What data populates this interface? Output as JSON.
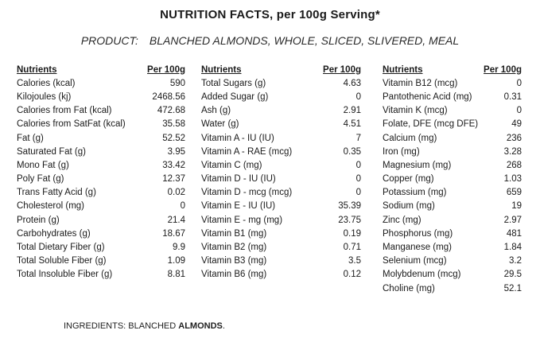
{
  "title": "NUTRITION FACTS, per 100g Serving*",
  "product": {
    "label": "PRODUCT:",
    "value": "BLANCHED ALMONDS, WHOLE, SLICED, SLIVERED, MEAL"
  },
  "columns": [
    {
      "header_name": "Nutrients",
      "header_value": "Per 100g",
      "rows": [
        {
          "name": "Calories (kcal)",
          "value": "590"
        },
        {
          "name": "Kilojoules (kj)",
          "value": "2468.56"
        },
        {
          "name": "Calories from Fat (kcal)",
          "value": "472.68"
        },
        {
          "name": "Calories from SatFat (kcal)",
          "value": "35.58"
        },
        {
          "name": "Fat (g)",
          "value": "52.52"
        },
        {
          "name": "Saturated Fat (g)",
          "value": "3.95"
        },
        {
          "name": "Mono Fat (g)",
          "value": "33.42"
        },
        {
          "name": "Poly Fat (g)",
          "value": "12.37"
        },
        {
          "name": "Trans Fatty Acid (g)",
          "value": "0.02"
        },
        {
          "name": "Cholesterol (mg)",
          "value": "0"
        },
        {
          "name": "Protein (g)",
          "value": "21.4"
        },
        {
          "name": "Carbohydrates (g)",
          "value": "18.67"
        },
        {
          "name": "Total Dietary Fiber (g)",
          "value": "9.9"
        },
        {
          "name": "Total Soluble Fiber (g)",
          "value": "1.09"
        },
        {
          "name": "Total Insoluble Fiber (g)",
          "value": "8.81"
        }
      ]
    },
    {
      "header_name": "Nutrients",
      "header_value": "Per 100g",
      "rows": [
        {
          "name": "Total Sugars (g)",
          "value": "4.63"
        },
        {
          "name": "Added Sugar (g)",
          "value": "0"
        },
        {
          "name": "Ash (g)",
          "value": "2.91"
        },
        {
          "name": "Water (g)",
          "value": "4.51"
        },
        {
          "name": "Vitamin A - IU (IU)",
          "value": "7"
        },
        {
          "name": "Vitamin A - RAE (mcg)",
          "value": "0.35"
        },
        {
          "name": "Vitamin C (mg)",
          "value": "0"
        },
        {
          "name": "Vitamin D - IU (IU)",
          "value": "0"
        },
        {
          "name": "Vitamin D - mcg (mcg)",
          "value": "0"
        },
        {
          "name": "Vitamin E - IU (IU)",
          "value": "35.39"
        },
        {
          "name": "Vitamin E - mg (mg)",
          "value": "23.75"
        },
        {
          "name": "Vitamin B1 (mg)",
          "value": "0.19"
        },
        {
          "name": "Vitamin B2 (mg)",
          "value": "0.71"
        },
        {
          "name": "Vitamin B3 (mg)",
          "value": "3.5"
        },
        {
          "name": "Vitamin B6 (mg)",
          "value": "0.12"
        }
      ]
    },
    {
      "header_name": "Nutrients",
      "header_value": "Per 100g",
      "rows": [
        {
          "name": "Vitamin B12 (mcg)",
          "value": "0"
        },
        {
          "name": "Pantothenic Acid (mg)",
          "value": "0.31"
        },
        {
          "name": "Vitamin K (mcg)",
          "value": "0"
        },
        {
          "name": "Folate, DFE (mcg DFE)",
          "value": "49"
        },
        {
          "name": "Calcium (mg)",
          "value": "236"
        },
        {
          "name": "Iron (mg)",
          "value": "3.28"
        },
        {
          "name": "Magnesium (mg)",
          "value": "268"
        },
        {
          "name": "Copper (mg)",
          "value": "1.03"
        },
        {
          "name": "Potassium (mg)",
          "value": "659"
        },
        {
          "name": "Sodium (mg)",
          "value": "19"
        },
        {
          "name": "Zinc (mg)",
          "value": "2.97"
        },
        {
          "name": "Phosphorus (mg)",
          "value": "481"
        },
        {
          "name": "Manganese (mg)",
          "value": "1.84"
        },
        {
          "name": "Selenium (mcg)",
          "value": "3.2"
        },
        {
          "name": "Molybdenum (mcg)",
          "value": "29.5"
        },
        {
          "name": "Choline (mg)",
          "value": "52.1"
        }
      ]
    }
  ],
  "ingredients": {
    "prefix": "INGREDIENTS: BLANCHED ",
    "highlight": "ALMONDS",
    "suffix": "."
  }
}
